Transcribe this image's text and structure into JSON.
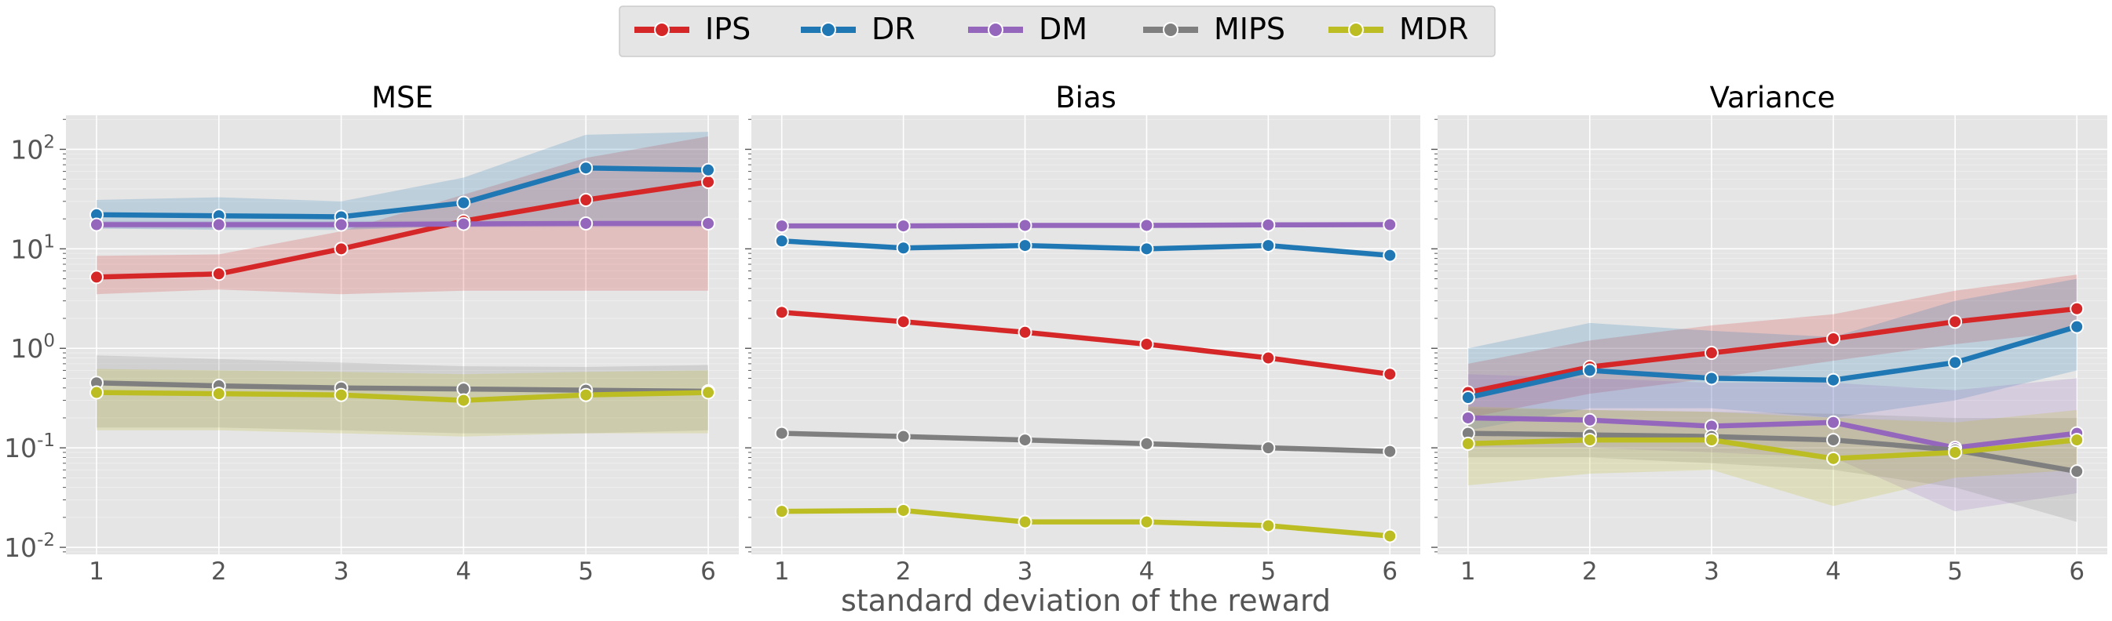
{
  "figure": {
    "xlabel": "standard deviation of the reward",
    "legend_placement": "top-center",
    "series_styles": [
      {
        "name": "IPS",
        "color": "#d62728"
      },
      {
        "name": "DR",
        "color": "#1f77b4"
      },
      {
        "name": "DM",
        "color": "#9467bd"
      },
      {
        "name": "MIPS",
        "color": "#7f7f7f"
      },
      {
        "name": "MDR",
        "color": "#bcbd22"
      }
    ],
    "colors": {
      "plot_bg": "#e5e5e5",
      "grid": "#ffffff",
      "text": "#555555",
      "title": "#000000"
    }
  },
  "chart_data": [
    {
      "type": "line",
      "title": "MSE",
      "xlabel": "",
      "ylabel": "",
      "yscale": "log",
      "x": [
        1,
        2,
        3,
        4,
        5,
        6
      ],
      "xlim": [
        0.75,
        6.25
      ],
      "ylim": [
        0.0085,
        220
      ],
      "yticks": [
        0.01,
        0.1,
        1,
        10,
        100
      ],
      "ytick_labels": [
        "10^{-2}",
        "10^{-1}",
        "10^{0}",
        "10^{1}",
        "10^{2}"
      ],
      "grid": true,
      "series": [
        {
          "name": "IPS",
          "values": [
            5.2,
            5.6,
            10.0,
            19.0,
            31.0,
            47.0
          ],
          "lower": [
            3.5,
            3.9,
            3.5,
            3.8,
            3.8,
            3.8
          ],
          "upper": [
            8.5,
            8.8,
            15.0,
            35.0,
            82.0,
            135.0
          ]
        },
        {
          "name": "DR",
          "values": [
            22.0,
            21.5,
            21.0,
            29.0,
            65.0,
            62.0
          ],
          "lower": [
            16.0,
            15.5,
            15.5,
            17.0,
            17.0,
            17.0
          ],
          "upper": [
            31.0,
            33.0,
            30.0,
            52.0,
            140.0,
            150.0
          ]
        },
        {
          "name": "DM",
          "values": [
            17.5,
            17.5,
            17.5,
            17.8,
            18.0,
            18.0
          ],
          "lower": [
            16.0,
            16.0,
            16.0,
            16.5,
            16.5,
            16.5
          ],
          "upper": [
            19.0,
            19.0,
            19.0,
            19.0,
            19.0,
            19.0
          ]
        },
        {
          "name": "MIPS",
          "values": [
            0.45,
            0.42,
            0.4,
            0.39,
            0.38,
            0.37
          ],
          "lower": [
            0.16,
            0.16,
            0.15,
            0.14,
            0.14,
            0.15
          ],
          "upper": [
            0.85,
            0.78,
            0.72,
            0.66,
            0.65,
            0.68
          ]
        },
        {
          "name": "MDR",
          "values": [
            0.36,
            0.35,
            0.34,
            0.3,
            0.34,
            0.36
          ],
          "lower": [
            0.15,
            0.15,
            0.14,
            0.13,
            0.14,
            0.14
          ],
          "upper": [
            0.62,
            0.6,
            0.58,
            0.55,
            0.58,
            0.6
          ]
        }
      ]
    },
    {
      "type": "line",
      "title": "Bias",
      "xlabel": "",
      "ylabel": "",
      "yscale": "log",
      "x": [
        1,
        2,
        3,
        4,
        5,
        6
      ],
      "xlim": [
        0.75,
        6.25
      ],
      "ylim": [
        0.0085,
        220
      ],
      "yticks": [
        0.01,
        0.1,
        1,
        10,
        100
      ],
      "grid": true,
      "series": [
        {
          "name": "IPS",
          "values": [
            2.3,
            1.85,
            1.45,
            1.1,
            0.8,
            0.55
          ]
        },
        {
          "name": "DR",
          "values": [
            12.0,
            10.2,
            10.8,
            10.0,
            10.8,
            8.6
          ]
        },
        {
          "name": "DM",
          "values": [
            17.0,
            17.0,
            17.2,
            17.2,
            17.4,
            17.5
          ]
        },
        {
          "name": "MIPS",
          "values": [
            0.14,
            0.13,
            0.12,
            0.11,
            0.1,
            0.092
          ]
        },
        {
          "name": "MDR",
          "values": [
            0.023,
            0.0235,
            0.018,
            0.018,
            0.0165,
            0.013
          ]
        }
      ]
    },
    {
      "type": "line",
      "title": "Variance",
      "xlabel": "",
      "ylabel": "",
      "yscale": "log",
      "x": [
        1,
        2,
        3,
        4,
        5,
        6
      ],
      "xlim": [
        0.75,
        6.25
      ],
      "ylim": [
        0.0085,
        220
      ],
      "yticks": [
        0.01,
        0.1,
        1,
        10,
        100
      ],
      "grid": true,
      "series": [
        {
          "name": "IPS",
          "values": [
            0.36,
            0.65,
            0.9,
            1.25,
            1.85,
            2.5
          ],
          "lower": [
            0.2,
            0.35,
            0.5,
            0.75,
            1.1,
            1.5
          ],
          "upper": [
            0.7,
            1.2,
            1.7,
            2.2,
            3.8,
            5.5
          ]
        },
        {
          "name": "DR",
          "values": [
            0.32,
            0.6,
            0.5,
            0.48,
            0.72,
            1.65
          ],
          "lower": [
            0.15,
            0.25,
            0.25,
            0.2,
            0.3,
            0.6
          ],
          "upper": [
            1.0,
            1.8,
            1.5,
            1.3,
            3.0,
            5.0
          ]
        },
        {
          "name": "DM",
          "values": [
            0.2,
            0.19,
            0.165,
            0.18,
            0.1,
            0.14
          ],
          "lower": [
            0.1,
            0.1,
            0.09,
            0.08,
            0.023,
            0.035
          ],
          "upper": [
            0.55,
            0.5,
            0.45,
            0.45,
            0.38,
            0.5
          ]
        },
        {
          "name": "MIPS",
          "values": [
            0.14,
            0.135,
            0.13,
            0.12,
            0.095,
            0.058
          ],
          "lower": [
            0.08,
            0.08,
            0.07,
            0.06,
            0.04,
            0.018
          ],
          "upper": [
            0.25,
            0.24,
            0.23,
            0.22,
            0.2,
            0.2
          ]
        },
        {
          "name": "MDR",
          "values": [
            0.11,
            0.12,
            0.12,
            0.078,
            0.09,
            0.12
          ],
          "lower": [
            0.042,
            0.055,
            0.06,
            0.026,
            0.05,
            0.06
          ],
          "upper": [
            0.26,
            0.24,
            0.23,
            0.2,
            0.18,
            0.24
          ]
        }
      ]
    }
  ]
}
